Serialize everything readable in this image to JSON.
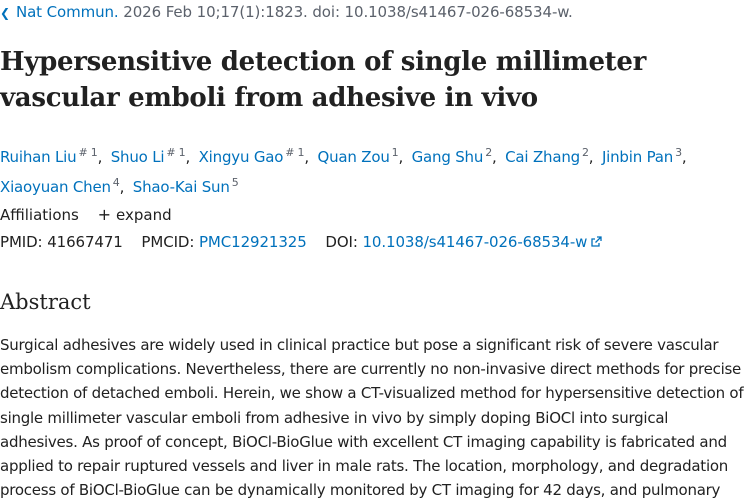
{
  "citation": {
    "journal": "Nat Commun.",
    "details": "2026 Feb 10;17(1):1823. doi: 10.1038/s41467-026-68534-w."
  },
  "title": "Hypersensitive detection of single millimeter vascular emboli from adhesive in vivo",
  "authors": [
    {
      "name": "Ruihan Liu",
      "sup": "# 1"
    },
    {
      "name": "Shuo Li",
      "sup": "# 1"
    },
    {
      "name": "Xingyu Gao",
      "sup": "# 1"
    },
    {
      "name": "Quan Zou",
      "sup": "1"
    },
    {
      "name": "Gang Shu",
      "sup": "2"
    },
    {
      "name": "Cai Zhang",
      "sup": "2"
    },
    {
      "name": "Jinbin Pan",
      "sup": "3"
    },
    {
      "name": "Xiaoyuan Chen",
      "sup": "4"
    },
    {
      "name": "Shao-Kai Sun",
      "sup": "5"
    }
  ],
  "affiliations": {
    "label": "Affiliations",
    "expand": "expand"
  },
  "ids": {
    "pmid_label": "PMID:",
    "pmid": "41667471",
    "pmcid_label": "PMCID:",
    "pmcid": "PMC12921325",
    "doi_label": "DOI:",
    "doi": "10.1038/s41467-026-68534-w"
  },
  "abstract": {
    "heading": "Abstract",
    "text": "Surgical adhesives are widely used in clinical practice but pose a significant risk of severe vascular embolism complications. Nevertheless, there are currently no non-invasive direct methods for precise detection of detached emboli. Herein, we show a CT-visualized method for hypersensitive detection of single millimeter vascular emboli from adhesive in vivo by simply doping BiOCl into surgical adhesives. As proof of concept, BiOCl-BioGlue with excellent CT imaging capability is fabricated and applied to repair ruptured vessels and liver in male rats. The location, morphology, and degradation process of BiOCl-BioGlue can be dynamically monitored by CT imaging for 42 days, and pulmonary"
  },
  "colors": {
    "link": "#0071bc",
    "text": "#212121",
    "muted": "#5b616b"
  }
}
